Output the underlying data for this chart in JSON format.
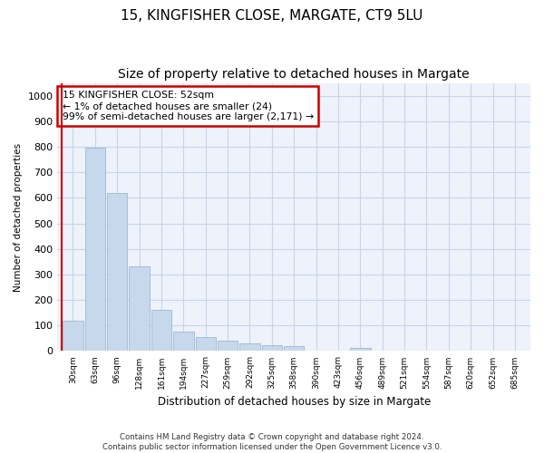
{
  "title_line1": "15, KINGFISHER CLOSE, MARGATE, CT9 5LU",
  "title_line2": "Size of property relative to detached houses in Margate",
  "xlabel": "Distribution of detached houses by size in Margate",
  "ylabel": "Number of detached properties",
  "categories": [
    "30sqm",
    "63sqm",
    "96sqm",
    "128sqm",
    "161sqm",
    "194sqm",
    "227sqm",
    "259sqm",
    "292sqm",
    "325sqm",
    "358sqm",
    "390sqm",
    "423sqm",
    "456sqm",
    "489sqm",
    "521sqm",
    "554sqm",
    "587sqm",
    "620sqm",
    "652sqm",
    "685sqm"
  ],
  "values": [
    120,
    795,
    620,
    330,
    160,
    75,
    55,
    40,
    30,
    22,
    18,
    0,
    0,
    13,
    0,
    0,
    0,
    0,
    0,
    0,
    0
  ],
  "bar_color": "#c8d8ec",
  "bar_edge_color": "#9ab8d0",
  "annotation_box_color": "#cc0000",
  "annotation_text": "15 KINGFISHER CLOSE: 52sqm\n← 1% of detached houses are smaller (24)\n99% of semi-detached houses are larger (2,171) →",
  "ylim": [
    0,
    1050
  ],
  "yticks": [
    0,
    100,
    200,
    300,
    400,
    500,
    600,
    700,
    800,
    900,
    1000
  ],
  "grid_color": "#c8d4e8",
  "bg_color": "#eef2fa",
  "footer": "Contains HM Land Registry data © Crown copyright and database right 2024.\nContains public sector information licensed under the Open Government Licence v3.0.",
  "title_fontsize": 11,
  "subtitle_fontsize": 10,
  "red_line_x": -0.5
}
